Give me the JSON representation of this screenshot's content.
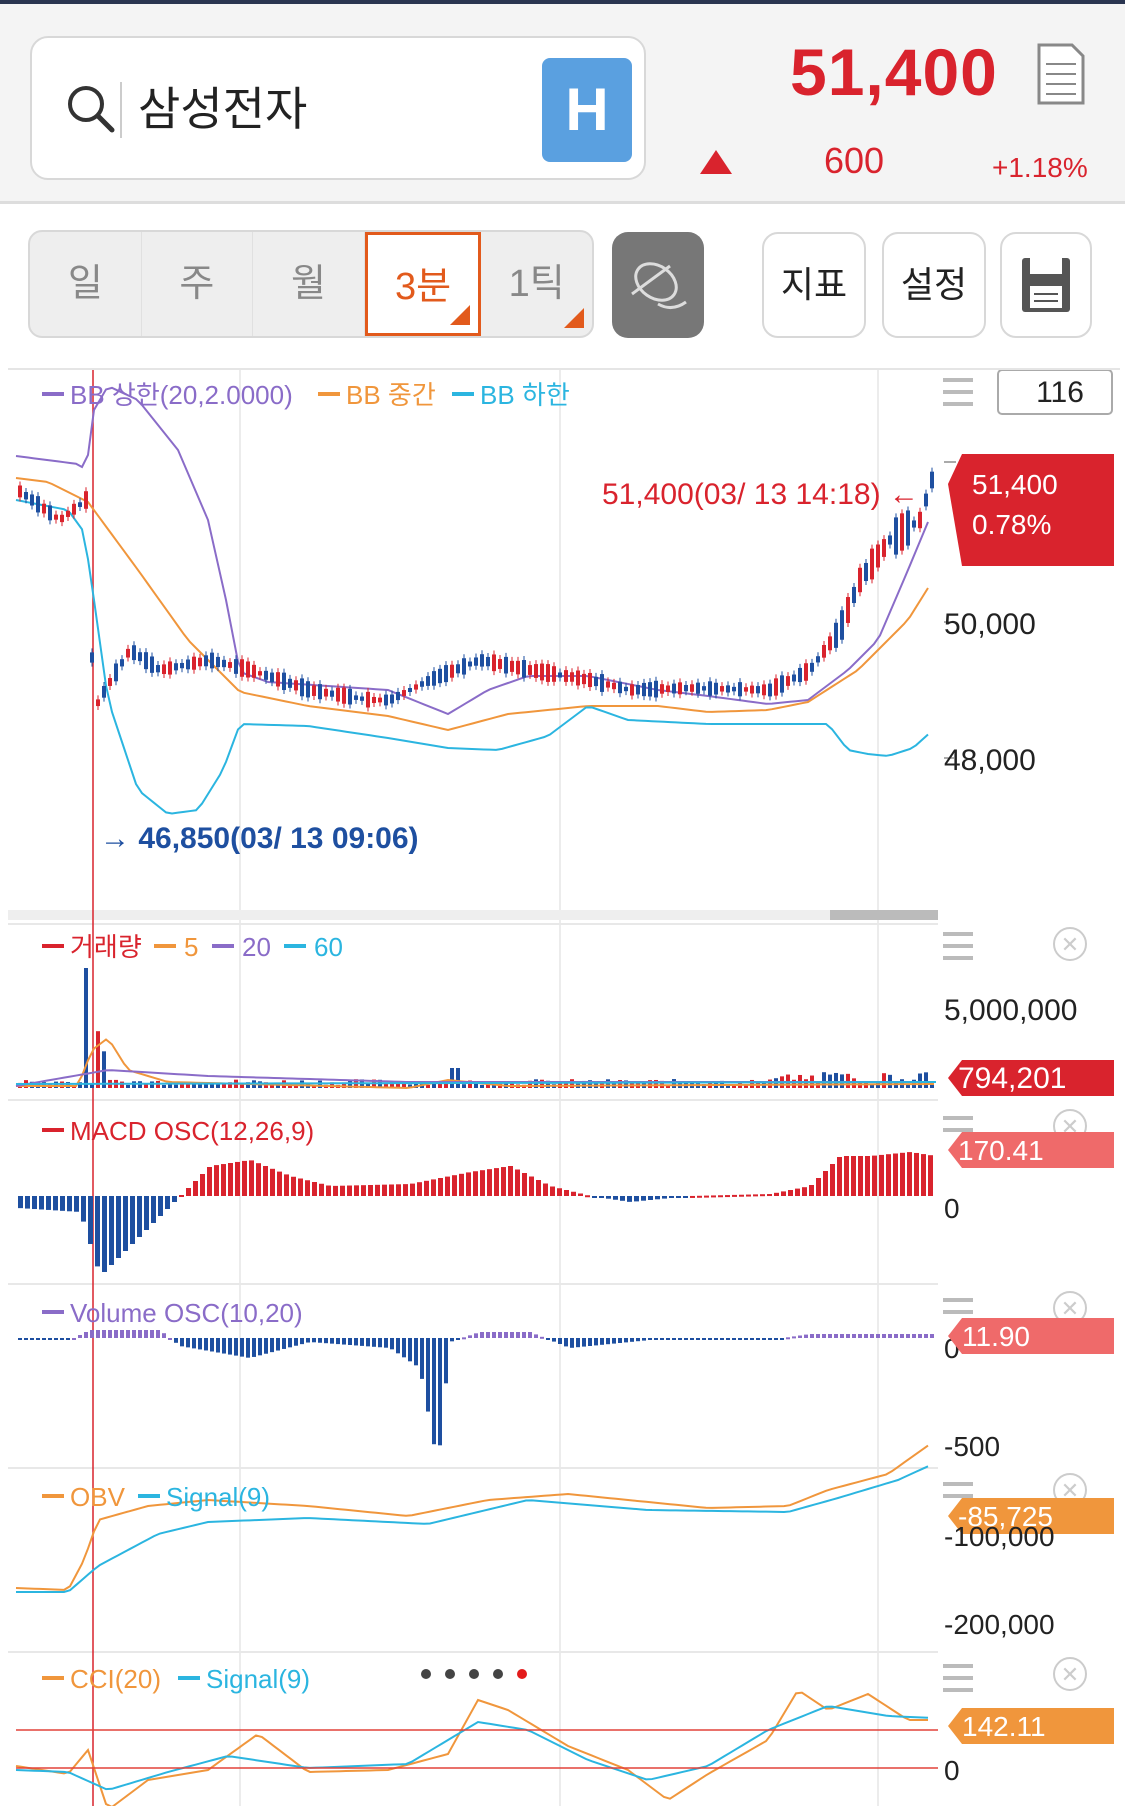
{
  "header": {
    "search_value": "삼성전자",
    "h_label": "H",
    "price": "51,400",
    "change": "600",
    "change_pct": "+1.18%"
  },
  "periods": [
    {
      "label": "일",
      "active": false
    },
    {
      "label": "주",
      "active": false
    },
    {
      "label": "월",
      "active": false
    },
    {
      "label": "3분",
      "active": true
    },
    {
      "label": "1틱",
      "active": false
    }
  ],
  "tools": {
    "indicator": "지표",
    "settings": "설정"
  },
  "count_box": "116",
  "main_chart": {
    "legend": [
      {
        "label": "BB 상한(20,2.0000)",
        "color": "#8a6cc8"
      },
      {
        "label": "BB 중간",
        "color": "#f0963c"
      },
      {
        "label": "BB 하한",
        "color": "#2bb5e0"
      }
    ],
    "high_annotation": "51,400(03/ 13  14:18)  ←",
    "low_annotation": "→ 46,850(03/ 13 09:06)",
    "price_tag": "51,400",
    "price_tag_pct": "0.78%",
    "y_labels": [
      "50,000",
      "48,000"
    ]
  },
  "volume_panel": {
    "legend": [
      {
        "label": "거래량",
        "color": "#d9232d"
      },
      {
        "label": "5",
        "color": "#f0963c"
      },
      {
        "label": "20",
        "color": "#8a6cc8"
      },
      {
        "label": "60",
        "color": "#2bb5e0"
      }
    ],
    "y_label": "5,000,000",
    "tag": "794,201"
  },
  "macd_panel": {
    "legend": "MACD OSC(12,26,9)",
    "tag": "170.41",
    "y_label": "0"
  },
  "vosc_panel": {
    "legend": "Volume OSC(10,20)",
    "tag": "11.90",
    "y_labels": [
      "0",
      "-500"
    ]
  },
  "obv_panel": {
    "legend": [
      {
        "label": "OBV",
        "color": "#f0963c"
      },
      {
        "label": "Signal(9)",
        "color": "#2bb5e0"
      }
    ],
    "tag": "-85,725",
    "y_labels": [
      "-100,000",
      "-200,000"
    ]
  },
  "cci_panel": {
    "legend": [
      {
        "label": "CCI(20)",
        "color": "#f0963c"
      },
      {
        "label": "Signal(9)",
        "color": "#2bb5e0"
      }
    ],
    "tag": "142.11",
    "y_label": "0"
  },
  "colors": {
    "up": "#d9232d",
    "down": "#1e4fa0",
    "accent": "#e25a1c"
  }
}
